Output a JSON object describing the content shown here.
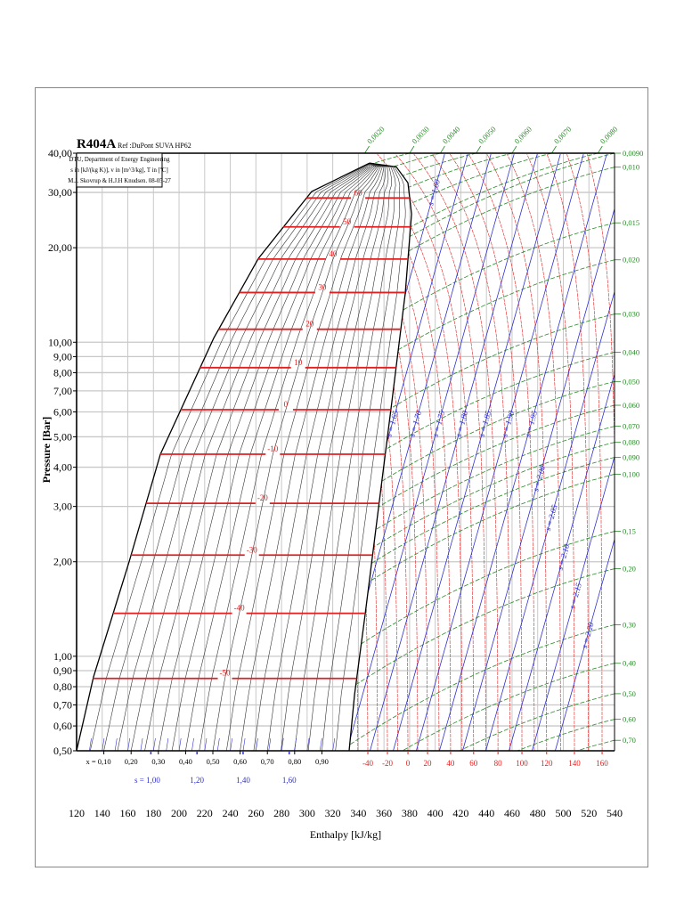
{
  "chart_data": {
    "type": "line",
    "title": "R404A",
    "subtitle": "Ref :DuPont SUVA HP62",
    "info_box": [
      "DTU, Department of Energy Engineering",
      "s in [kJ/(kg K)], v in [m^3/kg], T in [ºC]",
      "M.J. Skovrup & H.J.H Knudsen. 08-05-27"
    ],
    "xlabel": "Enthalpy [kJ/kg]",
    "ylabel": "Pressure [Bar]",
    "xlim": [
      120,
      540
    ],
    "ylim": [
      0.5,
      40
    ],
    "yscale": "log",
    "grid": true,
    "colors": {
      "isotherm": "#e02020",
      "isentrope": "#3030d0",
      "volume": "#2a8a2a",
      "saturation": "#000000",
      "quality": "#333333",
      "grid": "#c8c8c8"
    },
    "x_ticks": [
      120,
      140,
      160,
      180,
      200,
      220,
      240,
      260,
      280,
      300,
      320,
      340,
      360,
      380,
      400,
      420,
      440,
      460,
      480,
      500,
      520,
      540
    ],
    "y_ticks": [
      {
        "value": 40,
        "label": "40,00"
      },
      {
        "value": 30,
        "label": "30,00"
      },
      {
        "value": 20,
        "label": "20,00"
      },
      {
        "value": 10,
        "label": "10,00"
      },
      {
        "value": 9,
        "label": "9,00"
      },
      {
        "value": 8,
        "label": "8,00"
      },
      {
        "value": 7,
        "label": "7,00"
      },
      {
        "value": 6,
        "label": "6,00"
      },
      {
        "value": 5,
        "label": "5,00"
      },
      {
        "value": 4,
        "label": "4,00"
      },
      {
        "value": 3,
        "label": "3,00"
      },
      {
        "value": 2,
        "label": "2,00"
      },
      {
        "value": 1,
        "label": "1,00"
      },
      {
        "value": 0.9,
        "label": "0,90"
      },
      {
        "value": 0.8,
        "label": "0,80"
      },
      {
        "value": 0.7,
        "label": "0,70"
      },
      {
        "value": 0.6,
        "label": "0,60"
      },
      {
        "value": 0.5,
        "label": "0,50"
      }
    ],
    "saturation_liquid": [
      [
        120,
        0.5
      ],
      [
        133.2,
        0.86
      ],
      [
        161,
        2.0
      ],
      [
        185.4,
        4.4
      ],
      [
        227,
        10.3
      ],
      [
        262,
        18.5
      ],
      [
        303.6,
        30.2
      ],
      [
        348.8,
        37.2
      ]
    ],
    "saturation_vapor": [
      [
        348.8,
        37.2
      ],
      [
        369.6,
        36.2
      ],
      [
        378.7,
        32.2
      ],
      [
        381.5,
        25.6
      ],
      [
        376.6,
        14.3
      ],
      [
        366.2,
        6.5
      ],
      [
        355.7,
        2.97
      ],
      [
        345.3,
        1.36
      ],
      [
        337,
        0.755
      ],
      [
        332.8,
        0.5
      ]
    ],
    "isotherms_two_phase": [
      {
        "label": "60",
        "P": 28.8
      },
      {
        "label": "50",
        "P": 23.3
      },
      {
        "label": "40",
        "P": 18.4
      },
      {
        "label": "30",
        "P": 14.4
      },
      {
        "label": "20",
        "P": 11.0
      },
      {
        "label": "10",
        "P": 8.3
      },
      {
        "label": "0",
        "P": 6.1
      },
      {
        "label": "-10",
        "P": 4.4
      },
      {
        "label": "-20",
        "P": 3.07
      },
      {
        "label": "-30",
        "P": 2.1
      },
      {
        "label": "-40",
        "P": 1.37
      },
      {
        "label": "-50",
        "P": 0.85
      }
    ],
    "isotherms_superheat": [
      {
        "label": "-40",
        "T": -40,
        "h_at_0_5bar": 347.4
      },
      {
        "label": "-20",
        "T": -20,
        "h_at_0_5bar": 362.7
      },
      {
        "label": "0",
        "T": 0,
        "h_at_0_5bar": 378.7
      },
      {
        "label": "20",
        "T": 20,
        "h_at_0_5bar": 394
      },
      {
        "label": "40",
        "T": 40,
        "h_at_0_5bar": 412
      },
      {
        "label": "60",
        "T": 60,
        "h_at_0_5bar": 430
      },
      {
        "label": "80",
        "T": 80,
        "h_at_0_5bar": 449
      },
      {
        "label": "100",
        "T": 100,
        "h_at_0_5bar": 467.7
      },
      {
        "label": "120",
        "T": 120,
        "h_at_0_5bar": 487
      },
      {
        "label": "140",
        "T": 140,
        "h_at_0_5bar": 508.7
      },
      {
        "label": "160",
        "T": 160,
        "h_at_0_5bar": 530.3
      }
    ],
    "quality_lines": [
      {
        "label": "x = 0,10",
        "x": 0.1
      },
      {
        "label": "0,20",
        "x": 0.2
      },
      {
        "label": "0,30",
        "x": 0.3
      },
      {
        "label": "0,40",
        "x": 0.4
      },
      {
        "label": "0,50",
        "x": 0.5
      },
      {
        "label": "0,60",
        "x": 0.6
      },
      {
        "label": "0,70",
        "x": 0.7
      },
      {
        "label": "0,80",
        "x": 0.8
      },
      {
        "label": "0,90",
        "x": 0.9
      }
    ],
    "isentropes": [
      {
        "label": "s = 1.60",
        "s": 1.6,
        "h_at_1bar": 297.5,
        "h_at_10bar": 366.2
      },
      {
        "label": "s = 1.65",
        "s": 1.65,
        "h_at_1bar": 315.5,
        "h_at_10bar": 384.2
      },
      {
        "label": "s = 1.70",
        "s": 1.7,
        "h_at_1bar": 333.6,
        "h_at_10bar": 402.3
      },
      {
        "label": "s = 1.75",
        "s": 1.75,
        "h_at_1bar": 351.7,
        "h_at_10bar": 420.4
      },
      {
        "label": "s = 1.80",
        "s": 1.8,
        "h_at_1bar": 369.8,
        "h_at_10bar": 438.5
      },
      {
        "label": "s = 1.85",
        "s": 1.85,
        "h_at_1bar": 387.9,
        "h_at_10bar": 456.6
      },
      {
        "label": "s = 1.90",
        "s": 1.9,
        "h_at_1bar": 405.9,
        "h_at_10bar": 474.6
      },
      {
        "label": "s = 1.95",
        "s": 1.95,
        "h_at_1bar": 424.0,
        "h_at_10bar": 492.7
      },
      {
        "label": "s = 2.00",
        "s": 2.0,
        "h_at_1bar": 442.1,
        "h_at_10bar": 510.8
      },
      {
        "label": "s = 2.05",
        "s": 2.05,
        "h_at_1bar": 460.2,
        "h_at_10bar": 528.9
      },
      {
        "label": "s = 2.10",
        "s": 2.1,
        "h_at_1bar": 478.3,
        "h_at_10bar": 547.0
      },
      {
        "label": "s = 2.15",
        "s": 2.15,
        "h_at_1bar": 496.3,
        "h_at_10bar": 565.0
      },
      {
        "label": "s = 2.20",
        "s": 2.2,
        "h_at_1bar": 514.4,
        "h_at_10bar": 583.1
      }
    ],
    "isentrope_axis_labels": [
      {
        "label": "s = 1,00",
        "h": 178
      },
      {
        "label": "1,20",
        "h": 214
      },
      {
        "label": "1,40",
        "h": 250
      },
      {
        "label": "1,60",
        "h": 286
      }
    ],
    "specific_volume_top": [
      {
        "label": "0,0020",
        "h_at_40bar": 345
      },
      {
        "label": "0,0030",
        "h_at_40bar": 380
      },
      {
        "label": "0,0040",
        "h_at_40bar": 404
      },
      {
        "label": "0,0050",
        "h_at_40bar": 432
      },
      {
        "label": "0,0060",
        "h_at_40bar": 460
      },
      {
        "label": "0,0070",
        "h_at_40bar": 491
      },
      {
        "label": "0,0080",
        "h_at_40bar": 527
      }
    ],
    "specific_volume_right": [
      {
        "label": "0,0090",
        "P_at_540": 40
      },
      {
        "label": "0,010",
        "P_at_540": 36.1
      },
      {
        "label": "0,015",
        "P_at_540": 24.0
      },
      {
        "label": "0,020",
        "P_at_540": 18.3
      },
      {
        "label": "0,030",
        "P_at_540": 12.3
      },
      {
        "label": "0,040",
        "P_at_540": 9.3
      },
      {
        "label": "0,050",
        "P_at_540": 7.5
      },
      {
        "label": "0,060",
        "P_at_540": 6.3
      },
      {
        "label": "0,070",
        "P_at_540": 5.4
      },
      {
        "label": "0,080",
        "P_at_540": 4.8
      },
      {
        "label": "0,090",
        "P_at_540": 4.3
      },
      {
        "label": "0,100",
        "P_at_540": 3.8
      },
      {
        "label": "0,15",
        "P_at_540": 2.5
      },
      {
        "label": "0,20",
        "P_at_540": 1.9
      },
      {
        "label": "0,30",
        "P_at_540": 1.26
      },
      {
        "label": "0,40",
        "P_at_540": 0.95
      },
      {
        "label": "0,50",
        "P_at_540": 0.76
      },
      {
        "label": "0,60",
        "P_at_540": 0.63
      },
      {
        "label": "0,70",
        "P_at_540": 0.54
      }
    ]
  }
}
